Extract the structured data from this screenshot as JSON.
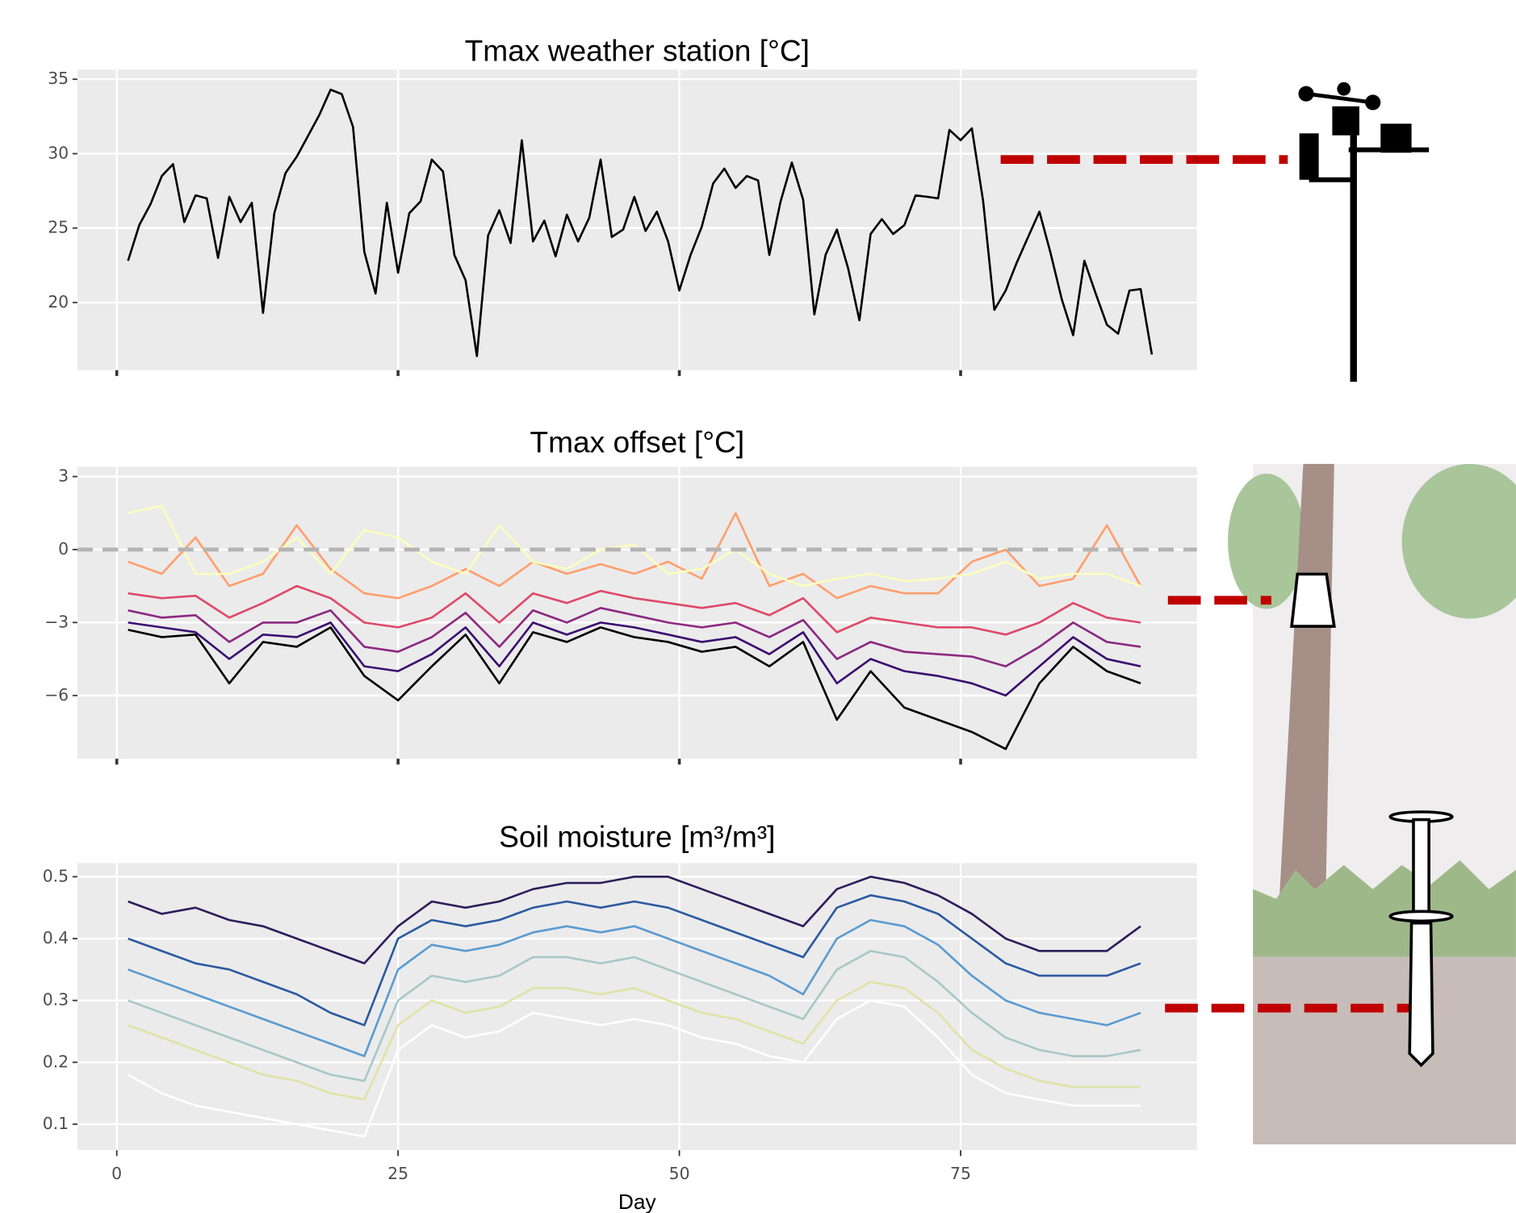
{
  "chart_data": [
    {
      "type": "line",
      "title": "Tmax weather station [°C]",
      "x": [
        1,
        2,
        3,
        4,
        5,
        6,
        7,
        8,
        9,
        10,
        11,
        12,
        13,
        14,
        15,
        16,
        17,
        18,
        19,
        20,
        21,
        22,
        23,
        24,
        25,
        26,
        27,
        28,
        29,
        30,
        31,
        32,
        33,
        34,
        35,
        36,
        37,
        38,
        39,
        40,
        41,
        42,
        43,
        44,
        45,
        46,
        47,
        48,
        49,
        50,
        51,
        52,
        53,
        54,
        55,
        56,
        57,
        58,
        59,
        60,
        61,
        62,
        63,
        64,
        65,
        66,
        67,
        68,
        69,
        70,
        71,
        72,
        73,
        74,
        75,
        76,
        77,
        78,
        79,
        80,
        81,
        82,
        83,
        84,
        85,
        86,
        87,
        88,
        89,
        90,
        91,
        92
      ],
      "series": [
        {
          "color": "#000000",
          "values": [
            22.8,
            25.2,
            26.6,
            28.5,
            29.3,
            25.4,
            27.2,
            27.0,
            23.0,
            27.1,
            25.4,
            26.7,
            19.3,
            26.0,
            28.7,
            29.8,
            31.2,
            32.6,
            34.3,
            34.0,
            31.8,
            23.4,
            20.6,
            26.7,
            22.0,
            26.0,
            26.8,
            29.6,
            28.8,
            23.2,
            21.5,
            16.4,
            24.5,
            26.2,
            24.0,
            30.9,
            24.1,
            25.5,
            23.1,
            25.9,
            24.1,
            25.7,
            29.6,
            24.4,
            24.9,
            27.1,
            24.8,
            26.1,
            24.1,
            20.8,
            23.2,
            25.1,
            28.0,
            29.0,
            27.7,
            28.5,
            28.2,
            23.2,
            26.8,
            29.4,
            26.9,
            19.2,
            23.2,
            24.9,
            22.3,
            18.8,
            24.6,
            25.6,
            24.6,
            25.2,
            27.2,
            27.1,
            27.0,
            31.6,
            30.9,
            31.7,
            26.8,
            19.5,
            20.8,
            22.7,
            24.4,
            26.1,
            23.3,
            20.2,
            17.8,
            22.8,
            20.6,
            18.5,
            17.9,
            20.8,
            20.9,
            16.5
          ]
        }
      ],
      "xlim": [
        -3.5,
        96
      ],
      "ylim": [
        15.45,
        35.65
      ],
      "xticks": [
        0,
        25,
        50,
        75
      ],
      "yticks": [
        20,
        25,
        30,
        35
      ],
      "grid": true,
      "x_tick_labels": false
    },
    {
      "type": "line",
      "title": "Tmax offset [°C]",
      "x": [
        1,
        4,
        7,
        10,
        13,
        16,
        19,
        22,
        25,
        28,
        31,
        34,
        37,
        40,
        43,
        46,
        49,
        52,
        55,
        58,
        61,
        64,
        67,
        70,
        73,
        76,
        79,
        82,
        85,
        88,
        91
      ],
      "series": [
        {
          "color": "#000000",
          "values": [
            -3.3,
            -3.6,
            -3.5,
            -5.5,
            -3.8,
            -4.0,
            -3.2,
            -5.2,
            -6.2,
            -4.8,
            -3.5,
            -5.5,
            -3.4,
            -3.8,
            -3.2,
            -3.6,
            -3.8,
            -4.2,
            -4.0,
            -4.8,
            -3.8,
            -7.0,
            -5.0,
            -6.5,
            -7.0,
            -7.5,
            -8.2,
            -5.5,
            -4.0,
            -5.0,
            -5.5
          ]
        },
        {
          "color": "#3b0f70",
          "values": [
            -3.0,
            -3.2,
            -3.4,
            -4.5,
            -3.5,
            -3.6,
            -3.0,
            -4.8,
            -5.0,
            -4.3,
            -3.2,
            -4.8,
            -3.0,
            -3.5,
            -3.0,
            -3.2,
            -3.5,
            -3.8,
            -3.6,
            -4.3,
            -3.4,
            -5.5,
            -4.5,
            -5.0,
            -5.2,
            -5.5,
            -6.0,
            -4.8,
            -3.6,
            -4.5,
            -4.8
          ]
        },
        {
          "color": "#8c2981",
          "values": [
            -2.5,
            -2.8,
            -2.7,
            -3.8,
            -3.0,
            -3.0,
            -2.5,
            -4.0,
            -4.2,
            -3.6,
            -2.6,
            -4.0,
            -2.5,
            -3.0,
            -2.4,
            -2.7,
            -3.0,
            -3.2,
            -3.0,
            -3.6,
            -2.9,
            -4.5,
            -3.8,
            -4.2,
            -4.3,
            -4.4,
            -4.8,
            -4.0,
            -3.0,
            -3.8,
            -4.0
          ]
        },
        {
          "color": "#de4968",
          "values": [
            -1.8,
            -2.0,
            -1.9,
            -2.8,
            -2.2,
            -1.5,
            -2.0,
            -3.0,
            -3.2,
            -2.8,
            -1.8,
            -3.0,
            -1.8,
            -2.2,
            -1.7,
            -2.0,
            -2.2,
            -2.4,
            -2.2,
            -2.7,
            -2.0,
            -3.4,
            -2.8,
            -3.0,
            -3.2,
            -3.2,
            -3.5,
            -3.0,
            -2.2,
            -2.8,
            -3.0
          ]
        },
        {
          "color": "#fe9f6d",
          "values": [
            -0.5,
            -1.0,
            0.5,
            -1.5,
            -1.0,
            1.0,
            -0.8,
            -1.8,
            -2.0,
            -1.5,
            -0.8,
            -1.5,
            -0.5,
            -1.0,
            -0.6,
            -1.0,
            -0.5,
            -1.2,
            1.5,
            -1.5,
            -1.0,
            -2.0,
            -1.5,
            -1.8,
            -1.8,
            -0.5,
            0.0,
            -1.5,
            -1.2,
            1.0,
            -1.5
          ]
        },
        {
          "color": "#fcfdbf",
          "values": [
            1.5,
            1.8,
            -1.0,
            -1.0,
            -0.5,
            0.5,
            -1.0,
            0.8,
            0.5,
            -0.5,
            -1.0,
            1.0,
            -0.5,
            -0.8,
            0.0,
            0.2,
            -1.0,
            -0.8,
            0.0,
            -1.0,
            -1.5,
            -1.2,
            -1.0,
            -1.3,
            -1.2,
            -1.0,
            -0.5,
            -1.2,
            -1.0,
            -1.0,
            -1.5
          ]
        }
      ],
      "xlim": [
        -3.5,
        96
      ],
      "ylim": [
        -8.6,
        3.4
      ],
      "xticks": [
        0,
        25,
        50,
        75
      ],
      "yticks": [
        {
          "value": -6,
          "label": "−6"
        },
        {
          "value": -3,
          "label": "−3"
        },
        0,
        3
      ],
      "grid": true,
      "reference_line": 0,
      "x_tick_labels": false
    },
    {
      "type": "line",
      "title": "Soil moisture [m³/m³]",
      "x_label": "Day",
      "x": [
        1,
        4,
        7,
        10,
        13,
        16,
        19,
        22,
        25,
        28,
        31,
        34,
        37,
        40,
        43,
        46,
        49,
        52,
        55,
        58,
        61,
        64,
        67,
        70,
        73,
        76,
        79,
        82,
        85,
        88,
        91
      ],
      "series": [
        {
          "color": "#2d1e5c",
          "values": [
            0.46,
            0.44,
            0.45,
            0.43,
            0.42,
            0.4,
            0.38,
            0.36,
            0.42,
            0.46,
            0.45,
            0.46,
            0.48,
            0.49,
            0.49,
            0.5,
            0.5,
            0.48,
            0.46,
            0.44,
            0.42,
            0.48,
            0.5,
            0.49,
            0.47,
            0.44,
            0.4,
            0.38,
            0.38,
            0.38,
            0.42
          ]
        },
        {
          "color": "#2c5aa0",
          "values": [
            0.4,
            0.38,
            0.36,
            0.35,
            0.33,
            0.31,
            0.28,
            0.26,
            0.4,
            0.43,
            0.42,
            0.43,
            0.45,
            0.46,
            0.45,
            0.46,
            0.45,
            0.43,
            0.41,
            0.39,
            0.37,
            0.45,
            0.47,
            0.46,
            0.44,
            0.4,
            0.36,
            0.34,
            0.34,
            0.34,
            0.36
          ]
        },
        {
          "color": "#5b9bd0",
          "values": [
            0.35,
            0.33,
            0.31,
            0.29,
            0.27,
            0.25,
            0.23,
            0.21,
            0.35,
            0.39,
            0.38,
            0.39,
            0.41,
            0.42,
            0.41,
            0.42,
            0.4,
            0.38,
            0.36,
            0.34,
            0.31,
            0.4,
            0.43,
            0.42,
            0.39,
            0.34,
            0.3,
            0.28,
            0.27,
            0.26,
            0.28
          ]
        },
        {
          "color": "#a9c7c9",
          "values": [
            0.3,
            0.28,
            0.26,
            0.24,
            0.22,
            0.2,
            0.18,
            0.17,
            0.3,
            0.34,
            0.33,
            0.34,
            0.37,
            0.37,
            0.36,
            0.37,
            0.35,
            0.33,
            0.31,
            0.29,
            0.27,
            0.35,
            0.38,
            0.37,
            0.33,
            0.28,
            0.24,
            0.22,
            0.21,
            0.21,
            0.22
          ]
        },
        {
          "color": "#dfe3a8",
          "values": [
            0.26,
            0.24,
            0.22,
            0.2,
            0.18,
            0.17,
            0.15,
            0.14,
            0.26,
            0.3,
            0.28,
            0.29,
            0.32,
            0.32,
            0.31,
            0.32,
            0.3,
            0.28,
            0.27,
            0.25,
            0.23,
            0.3,
            0.33,
            0.32,
            0.28,
            0.22,
            0.19,
            0.17,
            0.16,
            0.16,
            0.16
          ]
        },
        {
          "color": "#ffffff",
          "values": [
            0.18,
            0.15,
            0.13,
            0.12,
            0.11,
            0.1,
            0.09,
            0.08,
            0.22,
            0.26,
            0.24,
            0.25,
            0.28,
            0.27,
            0.26,
            0.27,
            0.26,
            0.24,
            0.23,
            0.21,
            0.2,
            0.27,
            0.3,
            0.29,
            0.24,
            0.18,
            0.15,
            0.14,
            0.13,
            0.13,
            0.13
          ]
        }
      ],
      "xlim": [
        -3.5,
        96
      ],
      "ylim": [
        0.058,
        0.522
      ],
      "xticks": [
        0,
        25,
        50,
        75
      ],
      "yticks": [
        0.1,
        0.2,
        0.3,
        0.4,
        0.5
      ],
      "grid": true,
      "x_tick_labels": true
    }
  ]
}
